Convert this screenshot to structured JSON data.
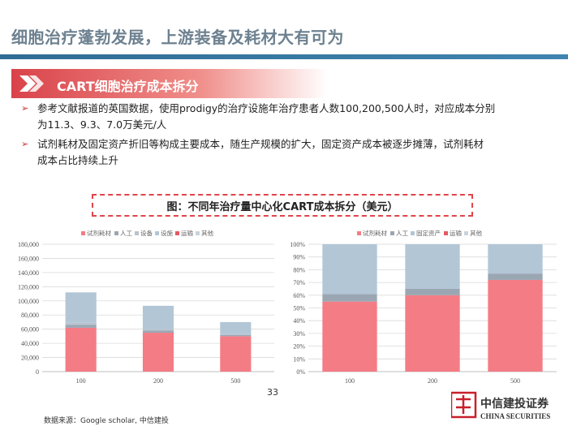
{
  "header": {
    "title": "细胞治疗蓬勃发展，上游装备及耗材大有可为",
    "section_label": "CART细胞治疗成本拆分"
  },
  "bullets": [
    {
      "line1": "参考文献报道的英国数据，使用prodigy的治疗设施年治疗患者人数100,200,500人时，对应成本分别",
      "line2": "为11.3、9.3、7.0万美元/人"
    },
    {
      "line1": "试剂耗材及固定资产折旧等构成主要成本，随生产规模的扩大，固定资产成本被逐步摊薄，试剂耗材",
      "line2": "成本占比持续上升"
    }
  ],
  "figure_caption": "图：不同年治疗量中心化CART成本拆分（美元）",
  "source": "数据来源：Google scholar, 中信建投",
  "page_number": "33",
  "logo": {
    "cn": "中信建投证券",
    "en": "CHINA SECURITIES"
  },
  "colors": {
    "accent_red": "#d9434a",
    "consumables": "#f47c85",
    "labor": "#9aa7b3",
    "equipment": "#b8c3cf",
    "facility": "#b2c6d6",
    "transport": "#e45a63",
    "other": "#c8d3dc"
  },
  "chart_data": [
    {
      "type": "bar",
      "stacked": true,
      "categories": [
        "100",
        "200",
        "500"
      ],
      "ylim": [
        0,
        180000
      ],
      "yticks": [
        "0",
        "20,000",
        "40,000",
        "60,000",
        "80,000",
        "100,000",
        "120,000",
        "140,000",
        "160,000",
        "180,000"
      ],
      "legend_position": "top",
      "series": [
        {
          "name": "试剂耗材",
          "values": [
            62000,
            55000,
            50000
          ]
        },
        {
          "name": "人工",
          "values": [
            4000,
            3000,
            2000
          ]
        },
        {
          "name": "设备",
          "values": [
            3000,
            2000,
            1000
          ]
        },
        {
          "name": "设施",
          "values": [
            43000,
            33000,
            17000
          ]
        },
        {
          "name": "运输",
          "values": [
            0,
            0,
            0
          ]
        },
        {
          "name": "其他",
          "values": [
            0,
            0,
            0
          ]
        }
      ]
    },
    {
      "type": "bar",
      "stacked": true,
      "percent": true,
      "categories": [
        "100",
        "200",
        "500"
      ],
      "ylim": [
        0,
        100
      ],
      "yticks": [
        "0%",
        "10%",
        "20%",
        "30%",
        "40%",
        "50%",
        "60%",
        "70%",
        "80%",
        "90%",
        "100%"
      ],
      "legend_position": "top",
      "series": [
        {
          "name": "试剂耗材",
          "values": [
            55,
            60,
            72
          ]
        },
        {
          "name": "人工",
          "values": [
            6,
            5,
            5
          ]
        },
        {
          "name": "固定资产",
          "values": [
            39,
            35,
            23
          ]
        },
        {
          "name": "运输",
          "values": [
            0,
            0,
            0
          ]
        },
        {
          "name": "其他",
          "values": [
            0,
            0,
            0
          ]
        }
      ]
    }
  ]
}
